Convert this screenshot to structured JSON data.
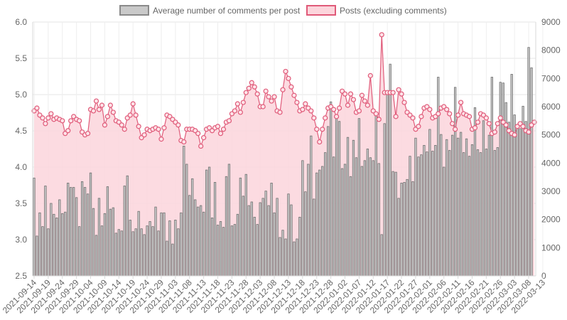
{
  "chart_data": {
    "type": "bar+line",
    "legend": {
      "position": "top",
      "items": [
        {
          "label": "Average number of comments per post",
          "color": "#c9c9c9",
          "border": "#8a8a8a"
        },
        {
          "label": "Posts (excluding comments)",
          "color": "#fcd5dc",
          "border": "#e05a79"
        }
      ]
    },
    "grid": true,
    "start_date": "2021-09-14",
    "x_tick_labels": [
      "2021-09-14",
      "2021-09-19",
      "2021-09-24",
      "2021-09-29",
      "2021-10-04",
      "2021-10-09",
      "2021-10-14",
      "2021-10-19",
      "2021-10-24",
      "2021-10-29",
      "2021-11-03",
      "2021-11-08",
      "2021-11-13",
      "2021-11-18",
      "2021-11-23",
      "2021-11-28",
      "2021-12-03",
      "2021-12-08",
      "2021-12-13",
      "2021-12-18",
      "2021-12-23",
      "2021-12-28",
      "2022-01-02",
      "2022-01-07",
      "2022-01-12",
      "2022-01-17",
      "2022-01-22",
      "2022-01-27",
      "2022-02-01",
      "2022-02-06",
      "2022-02-11",
      "2022-02-16",
      "2022-02-21",
      "2022-02-26",
      "2022-03-03",
      "2022-03-08",
      "2022-03-13"
    ],
    "x_tick_step_days": 5,
    "y_left": {
      "min": 2.5,
      "max": 6.0,
      "ticks": [
        "2.5",
        "3.0",
        "3.5",
        "4.0",
        "4.5",
        "5.0",
        "5.5",
        "6.0"
      ]
    },
    "y_right": {
      "min": 0,
      "max": 9000,
      "ticks": [
        "0",
        "1000",
        "2000",
        "3000",
        "4000",
        "5000",
        "6000",
        "7000",
        "8000",
        "9000"
      ]
    },
    "series": [
      {
        "name": "Average number of comments per post",
        "type": "bar",
        "axis": "left",
        "color": "#c9c9c9",
        "border": "#6f6f6f",
        "values": [
          3.85,
          3.05,
          3.37,
          3.18,
          3.74,
          3.15,
          3.5,
          3.35,
          3.3,
          3.55,
          3.36,
          3.38,
          3.78,
          3.72,
          3.72,
          3.58,
          3.18,
          3.8,
          3.72,
          3.63,
          3.92,
          3.43,
          3.06,
          3.57,
          3.19,
          3.36,
          3.73,
          3.42,
          3.44,
          3.09,
          3.14,
          3.12,
          3.74,
          3.88,
          3.27,
          3.11,
          3.15,
          3.39,
          3.15,
          3.07,
          3.19,
          3.25,
          3.18,
          3.45,
          3.12,
          3.37,
          3.37,
          2.98,
          3.26,
          2.94,
          3.27,
          3.15,
          3.37,
          4.29,
          4.04,
          3.61,
          3.84,
          3.55,
          3.45,
          3.47,
          3.38,
          3.96,
          4.0,
          3.3,
          3.79,
          3.2,
          3.25,
          3.17,
          3.87,
          4.04,
          3.19,
          3.21,
          3.35,
          3.85,
          3.6,
          3.9,
          3.47,
          3.52,
          3.31,
          3.21,
          3.51,
          3.57,
          3.67,
          3.47,
          3.78,
          3.37,
          3.57,
          3.03,
          3.13,
          3.01,
          3.63,
          3.48,
          2.97,
          3.01,
          3.31,
          4.09,
          3.66,
          4.04,
          4.43,
          3.56,
          3.92,
          3.96,
          4.01,
          4.2,
          4.56,
          4.9,
          4.14,
          4.7,
          4.63,
          3.98,
          4.04,
          4.41,
          3.87,
          4.37,
          4.13,
          4.67,
          4.01,
          4.09,
          4.25,
          4.13,
          4.09,
          4.76,
          4.05,
          3.07,
          4.6,
          5.04,
          5.42,
          3.94,
          3.93,
          3.57,
          3.78,
          3.79,
          3.83,
          4.15,
          3.8,
          4.4,
          4.14,
          4.17,
          4.3,
          4.21,
          4.52,
          4.22,
          4.3,
          5.24,
          4.45,
          4.0,
          4.38,
          4.23,
          4.44,
          5.1,
          4.4,
          4.48,
          4.2,
          4.39,
          4.15,
          4.31,
          4.82,
          4.24,
          4.2,
          4.64,
          4.25,
          4.44,
          5.24,
          4.23,
          4.27,
          5.17,
          5.16,
          4.89,
          4.62,
          5.28,
          4.72,
          4.57,
          4.53,
          4.84,
          4.63,
          5.65,
          5.37
        ]
      },
      {
        "name": "Posts (excluding comments)",
        "type": "area-line",
        "axis": "right",
        "color": "#fcd5dc",
        "border": "#e05a79",
        "values": [
          5850,
          5950,
          5700,
          5600,
          5400,
          5600,
          5750,
          5550,
          5600,
          5550,
          5500,
          5050,
          5150,
          5500,
          5650,
          5550,
          5500,
          5100,
          5000,
          5050,
          5900,
          5850,
          6200,
          5900,
          6050,
          5350,
          5650,
          6050,
          5800,
          5500,
          5450,
          5350,
          5200,
          5600,
          5700,
          6100,
          5700,
          5300,
          4900,
          5000,
          5200,
          5150,
          5200,
          5250,
          5200,
          4850,
          5250,
          5700,
          5650,
          5550,
          5450,
          5350,
          4800,
          4750,
          5200,
          5200,
          5200,
          5150,
          5050,
          4600,
          4900,
          5200,
          5250,
          5150,
          5250,
          5300,
          5050,
          5200,
          5450,
          5500,
          5750,
          5850,
          6100,
          5800,
          6150,
          6500,
          6650,
          6850,
          6700,
          6450,
          6000,
          6000,
          6550,
          6350,
          6200,
          6350,
          5850,
          5800,
          6600,
          7250,
          7000,
          6700,
          6400,
          6150,
          5850,
          5900,
          6100,
          5950,
          5850,
          5600,
          5200,
          4750,
          5200,
          5600,
          5950,
          6000,
          5900,
          5650,
          5950,
          6550,
          6450,
          6050,
          6450,
          6250,
          5800,
          5850,
          6400,
          6200,
          6050,
          7100,
          5850,
          5750,
          5550,
          8550,
          6500,
          6500,
          6500,
          6500,
          5650,
          6600,
          6450,
          6150,
          5800,
          5700,
          5600,
          5200,
          5300,
          5650,
          5950,
          6000,
          5900,
          5600,
          5650,
          5750,
          5950,
          6000,
          5900,
          5750,
          5400,
          5200,
          5700,
          6150,
          5750,
          5700,
          5650,
          5200,
          5250,
          5450,
          5750,
          5700,
          5600,
          5400,
          5050,
          5100,
          5400,
          5600,
          5450,
          5350,
          5150,
          5050,
          5000,
          5300,
          5400,
          5300,
          5150,
          5100,
          5350,
          5450
        ]
      }
    ]
  }
}
